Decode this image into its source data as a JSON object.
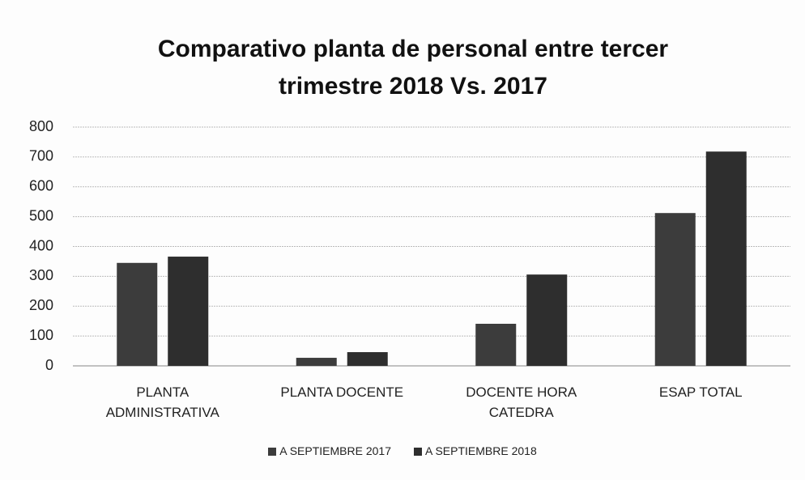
{
  "chart_data": {
    "type": "bar",
    "title": "Comparativo planta de personal entre tercer trimestre 2018 Vs. 2017",
    "categories": [
      "PLANTA ADMINISTRATIVA",
      "PLANTA DOCENTE",
      "DOCENTE HORA CATEDRA",
      "ESAP TOTAL"
    ],
    "series": [
      {
        "name": "A SEPTIEMBRE 2017",
        "color": "#3c3c3c",
        "values": [
          345,
          27,
          141,
          512
        ]
      },
      {
        "name": "A SEPTIEMBRE 2018",
        "color": "#2e2e2e",
        "values": [
          366,
          46,
          306,
          718
        ]
      }
    ],
    "ylim": [
      0,
      800
    ],
    "yticks": [
      0,
      100,
      200,
      300,
      400,
      500,
      600,
      700,
      800
    ],
    "grid": true,
    "legend": "bottom"
  }
}
